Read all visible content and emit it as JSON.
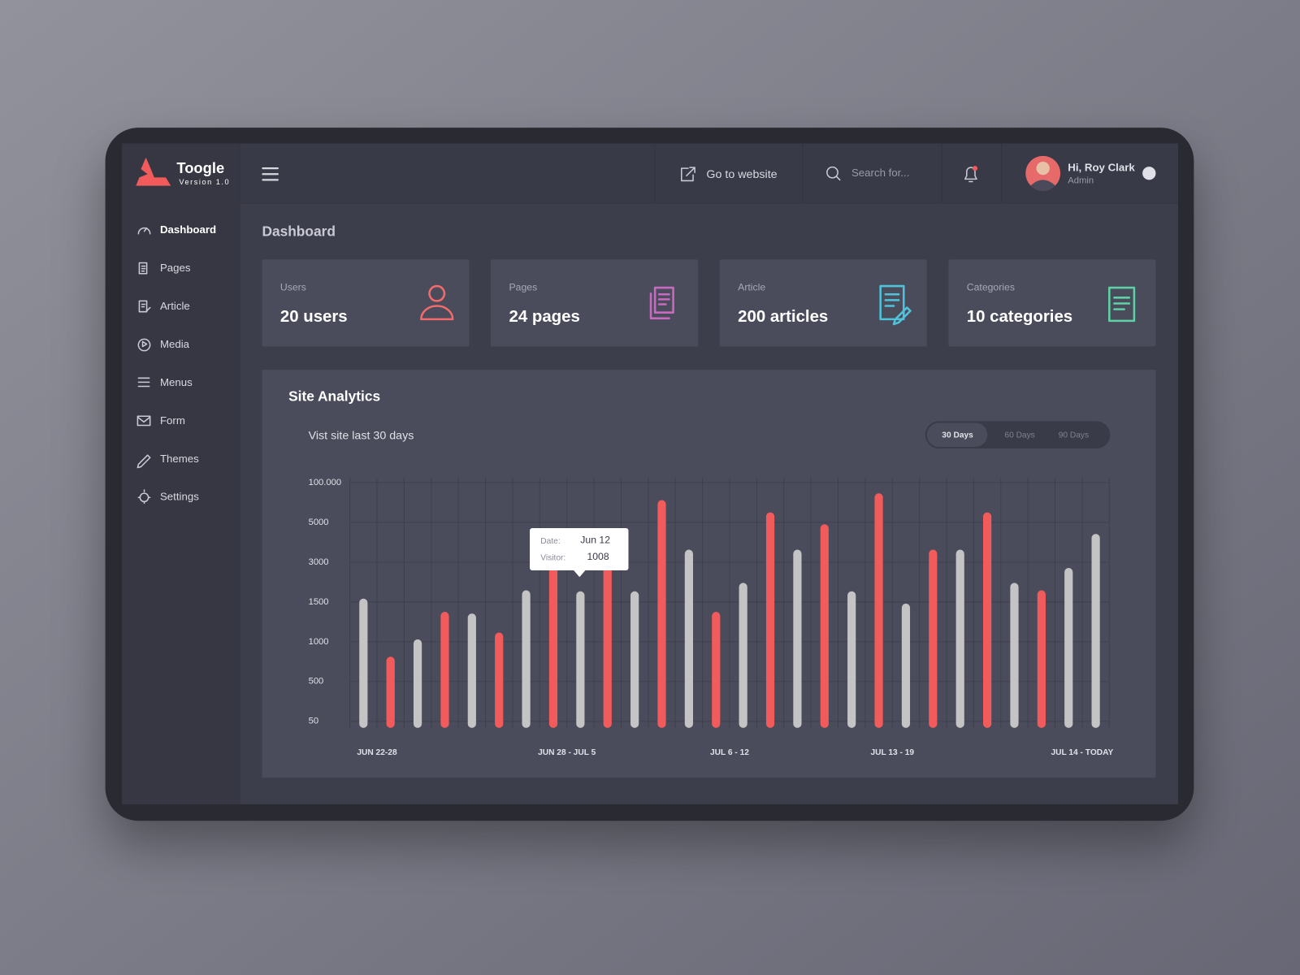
{
  "brand": {
    "name": "Toogle",
    "version": "Version 1.0"
  },
  "sidebar": {
    "items": [
      "Dashboard",
      "Pages",
      "Article",
      "Media",
      "Menus",
      "Form",
      "Themes",
      "Settings"
    ]
  },
  "header": {
    "link": "Go to website",
    "search_placeholder": "Search for...",
    "user_greeting": "Hi, Roy Clark",
    "user_role": "Admin"
  },
  "page_title": "Dashboard",
  "cards": [
    {
      "label": "Users",
      "value": "20 users"
    },
    {
      "label": "Pages",
      "value": "24 pages"
    },
    {
      "label": "Article",
      "value": "200 articles"
    },
    {
      "label": "Categories",
      "value": "10 categories"
    }
  ],
  "range_options": [
    "30 Days",
    "60 Days",
    "90 Days"
  ],
  "tooltip": {
    "date_label": "Date:",
    "date": "Jun 12",
    "visitor_label": "Visitor:",
    "visitor": 1008
  },
  "chart_data": {
    "type": "bar",
    "title": "Site Analytics",
    "subtitle": "Vist site last 30 days",
    "categories": [
      "JUN  22-28",
      null,
      null,
      null,
      null,
      null,
      null,
      "JUN 28 - JUL 5",
      null,
      null,
      null,
      null,
      null,
      "JUL 6 - 12",
      null,
      null,
      null,
      null,
      null,
      "JUL 13 - 19",
      null,
      null,
      null,
      null,
      null,
      null,
      "JUL 14 - TODAY",
      null
    ],
    "values": [
      1625,
      812,
      1030,
      1375,
      1354,
      1115,
      1938,
      2900,
      1900,
      2900,
      1900,
      58000,
      3625,
      1375,
      2219,
      28750,
      3625,
      4900,
      1900,
      74270,
      1479,
      3625,
      3625,
      28750,
      2219,
      1938,
      2781,
      4417
    ],
    "colors": [
      "#c4c4c4",
      "#f25b5b",
      "#c4c4c4",
      "#f25b5b",
      "#c4c4c4",
      "#f25b5b",
      "#c4c4c4",
      "#f25b5b",
      "#c4c4c4",
      "#f25b5b",
      "#c4c4c4",
      "#f25b5b",
      "#c4c4c4",
      "#f25b5b",
      "#c4c4c4",
      "#f25b5b",
      "#c4c4c4",
      "#f25b5b",
      "#c4c4c4",
      "#f25b5b",
      "#c4c4c4",
      "#f25b5b",
      "#c4c4c4",
      "#f25b5b",
      "#c4c4c4",
      "#f25b5b",
      "#c4c4c4",
      "#c4c4c4"
    ],
    "ylim": [
      50,
      100000
    ],
    "yticks": [
      50,
      500,
      1000,
      1500,
      3000,
      5000,
      {
        "value": 100000,
        "label": "100.000"
      }
    ],
    "grid": true
  }
}
